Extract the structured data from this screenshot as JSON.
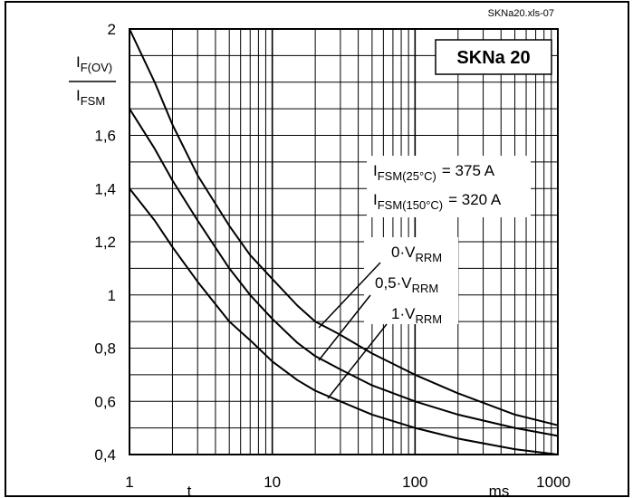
{
  "chart_data": {
    "type": "line",
    "title": "SKNa 20",
    "file_ref": "SKNa20.xls-07",
    "ylabel_num": "I",
    "ylabel_num_sub": "F(OV)",
    "ylabel_den": "I",
    "ylabel_den_sub": "FSM",
    "xlabel": "t",
    "xunit": "ms",
    "x_scale": "log",
    "xlim": [
      1,
      1000
    ],
    "ylim": [
      0.4,
      2
    ],
    "x_ticks": [
      "1",
      "10",
      "100",
      "1000"
    ],
    "y_ticks": [
      "0,4",
      "0,6",
      "0,8",
      "1",
      "1,2",
      "1,4",
      "1,6",
      "2"
    ],
    "y_tick_values": [
      0.4,
      0.6,
      0.8,
      1.0,
      1.2,
      1.4,
      1.6,
      2.0
    ],
    "grid": true,
    "annotations": {
      "ifsm25_prefix": "I",
      "ifsm25_sub": "FSM(25°C)",
      "ifsm25_value": "= 375 A",
      "ifsm150_prefix": "I",
      "ifsm150_sub": "FSM(150°C)",
      "ifsm150_value": "= 320 A"
    },
    "series": [
      {
        "name_prefix": "0·V",
        "name_sub": "RRM",
        "x": [
          1,
          1.5,
          2,
          3,
          5,
          7,
          10,
          15,
          20,
          30,
          50,
          100,
          200,
          500,
          1000
        ],
        "values": [
          2.0,
          1.8,
          1.64,
          1.45,
          1.26,
          1.15,
          1.06,
          0.96,
          0.9,
          0.85,
          0.78,
          0.7,
          0.63,
          0.55,
          0.51
        ]
      },
      {
        "name_prefix": "0,5·V",
        "name_sub": "RRM",
        "x": [
          1,
          1.5,
          2,
          3,
          5,
          7,
          10,
          15,
          20,
          30,
          50,
          100,
          200,
          500,
          1000
        ],
        "values": [
          1.7,
          1.55,
          1.43,
          1.28,
          1.1,
          1.0,
          0.91,
          0.82,
          0.77,
          0.72,
          0.66,
          0.6,
          0.55,
          0.5,
          0.47
        ]
      },
      {
        "name_prefix": "1·V",
        "name_sub": "RRM",
        "x": [
          1,
          1.5,
          2,
          3,
          5,
          7,
          10,
          15,
          20,
          30,
          50,
          100,
          200,
          500,
          1000
        ],
        "values": [
          1.4,
          1.28,
          1.18,
          1.05,
          0.9,
          0.83,
          0.75,
          0.68,
          0.64,
          0.6,
          0.55,
          0.5,
          0.46,
          0.42,
          0.4
        ]
      }
    ]
  }
}
